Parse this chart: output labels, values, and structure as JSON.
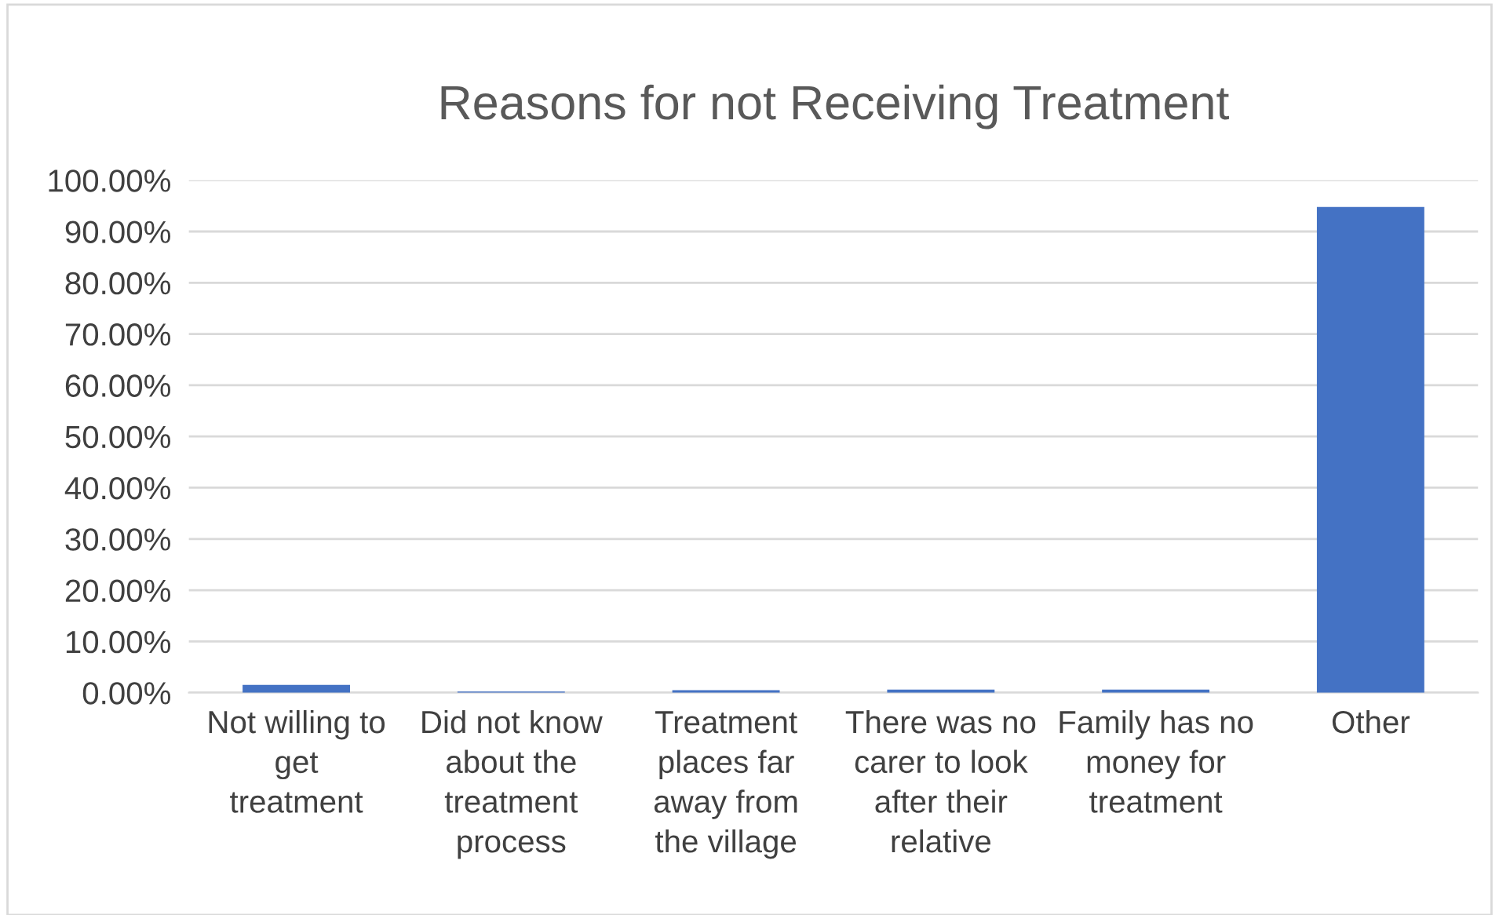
{
  "chart_data": {
    "type": "bar",
    "title": "Reasons for not Receiving Treatment",
    "categories": [
      "Not willing to\nget\ntreatment",
      "Did not know\nabout the\ntreatment\nprocess",
      "Treatment\nplaces far\naway from\nthe village",
      "There was no\ncarer to look\nafter their\nrelative",
      "Family has no\nmoney for\ntreatment",
      "Other"
    ],
    "values": [
      1.5,
      0.2,
      0.5,
      0.6,
      0.6,
      94.8
    ],
    "color": "#4472c4",
    "ylim": [
      0,
      100
    ],
    "yticks": [
      {
        "value": 0,
        "label": "0.00%"
      },
      {
        "value": 10,
        "label": "10.00%"
      },
      {
        "value": 20,
        "label": "20.00%"
      },
      {
        "value": 30,
        "label": "30.00%"
      },
      {
        "value": 40,
        "label": "40.00%"
      },
      {
        "value": 50,
        "label": "50.00%"
      },
      {
        "value": 60,
        "label": "60.00%"
      },
      {
        "value": 70,
        "label": "70.00%"
      },
      {
        "value": 80,
        "label": "80.00%"
      },
      {
        "value": 90,
        "label": "90.00%"
      },
      {
        "value": 100,
        "label": "100.00%"
      }
    ],
    "grid": "y"
  }
}
